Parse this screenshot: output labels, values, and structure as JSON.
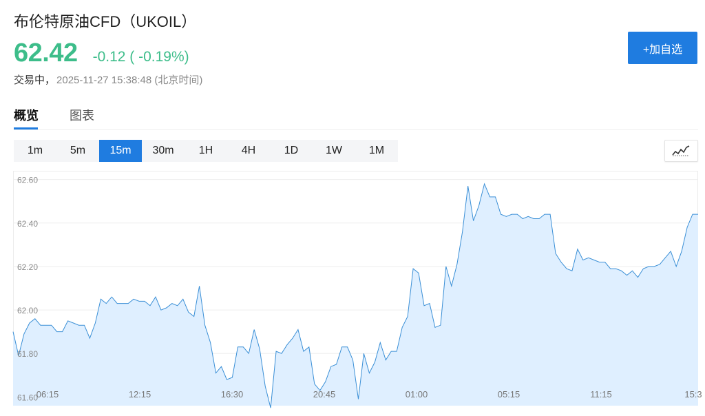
{
  "header": {
    "title": "布伦特原油CFD（UKOIL）",
    "price": "62.42",
    "change": "-0.12 ( -0.19%)",
    "status": "交易中，",
    "timestamp": "2025-11-27 15:38:48 (北京时间)",
    "add_button": "+加自选"
  },
  "tabs": [
    {
      "label": "概览",
      "active": true
    },
    {
      "label": "图表",
      "active": false
    }
  ],
  "intervals": [
    {
      "label": "1m",
      "active": false
    },
    {
      "label": "5m",
      "active": false
    },
    {
      "label": "15m",
      "active": true
    },
    {
      "label": "30m",
      "active": false
    },
    {
      "label": "1H",
      "active": false
    },
    {
      "label": "4H",
      "active": false
    },
    {
      "label": "1D",
      "active": false
    },
    {
      "label": "1W",
      "active": false
    },
    {
      "label": "1M",
      "active": false
    }
  ],
  "chart_type_icon": "line-chart-icon",
  "colors": {
    "up_down_green": "#3dbd8a",
    "accent_blue": "#1f7ce0",
    "line": "#3a8fd6",
    "area": "#dfefff"
  },
  "chart_data": {
    "type": "area",
    "y_ticks": [
      "62.60",
      "62.40",
      "62.20",
      "62.00",
      "61.80",
      "61.60"
    ],
    "ylim": [
      61.56,
      62.64
    ],
    "x_ticks": [
      "06:15",
      "12:15",
      "16:30",
      "20:45",
      "01:00",
      "05:15",
      "11:15",
      "15:3"
    ],
    "grid": true,
    "values": [
      61.9,
      61.79,
      61.89,
      61.94,
      61.96,
      61.93,
      61.93,
      61.93,
      61.9,
      61.9,
      61.95,
      61.94,
      61.93,
      61.93,
      61.87,
      61.94,
      62.05,
      62.03,
      62.06,
      62.03,
      62.03,
      62.03,
      62.05,
      62.04,
      62.04,
      62.02,
      62.06,
      62.0,
      62.01,
      62.03,
      62.02,
      62.05,
      61.99,
      61.97,
      62.11,
      61.93,
      61.85,
      61.71,
      61.74,
      61.68,
      61.69,
      61.83,
      61.83,
      61.8,
      61.91,
      61.82,
      61.65,
      61.55,
      61.81,
      61.8,
      61.84,
      61.87,
      61.91,
      61.81,
      61.83,
      61.66,
      61.63,
      61.67,
      61.74,
      61.75,
      61.83,
      61.83,
      61.77,
      61.59,
      61.8,
      61.71,
      61.76,
      61.85,
      61.77,
      61.81,
      61.81,
      61.92,
      61.97,
      62.19,
      62.17,
      62.02,
      62.03,
      61.92,
      61.93,
      62.2,
      62.11,
      62.21,
      62.36,
      62.57,
      62.41,
      62.48,
      62.58,
      62.52,
      62.52,
      62.44,
      62.43,
      62.44,
      62.44,
      62.42,
      62.43,
      62.42,
      62.42,
      62.44,
      62.44,
      62.26,
      62.22,
      62.19,
      62.18,
      62.28,
      62.23,
      62.24,
      62.23,
      62.22,
      62.22,
      62.19,
      62.19,
      62.18,
      62.16,
      62.18,
      62.15,
      62.19,
      62.2,
      62.2,
      62.21,
      62.24,
      62.27,
      62.2,
      62.27,
      62.38,
      62.44,
      62.44
    ]
  }
}
